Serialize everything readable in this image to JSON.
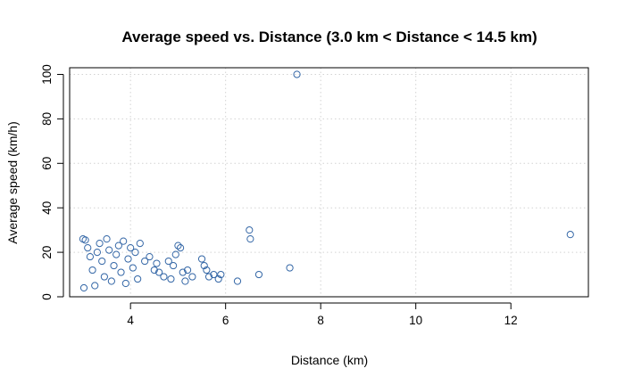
{
  "chart_data": {
    "type": "scatter",
    "title": "Average speed vs. Distance (3.0 km < Distance < 14.5 km)",
    "xlabel": "Distance (km)",
    "ylabel": "Average speed (km/h)",
    "xlim": [
      2.72,
      13.63
    ],
    "ylim": [
      0,
      103
    ],
    "xticks": [
      4,
      6,
      8,
      10,
      12
    ],
    "yticks": [
      0,
      20,
      40,
      60,
      80,
      100
    ],
    "grid": true,
    "legend": "none",
    "point_style": "open-circle",
    "color": "#3366a6",
    "series": [
      {
        "points": [
          [
            3.0,
            26
          ],
          [
            3.05,
            25.5
          ],
          [
            3.02,
            4
          ],
          [
            3.1,
            22
          ],
          [
            3.15,
            18
          ],
          [
            3.2,
            12
          ],
          [
            3.25,
            5
          ],
          [
            3.3,
            20
          ],
          [
            3.35,
            24
          ],
          [
            3.4,
            16
          ],
          [
            3.45,
            9
          ],
          [
            3.5,
            26
          ],
          [
            3.55,
            21
          ],
          [
            3.6,
            7
          ],
          [
            3.65,
            14
          ],
          [
            3.7,
            19
          ],
          [
            3.75,
            23
          ],
          [
            3.8,
            11
          ],
          [
            3.85,
            25
          ],
          [
            3.9,
            6
          ],
          [
            3.95,
            17
          ],
          [
            4.0,
            22
          ],
          [
            4.05,
            13
          ],
          [
            4.1,
            20
          ],
          [
            4.15,
            8
          ],
          [
            4.2,
            24
          ],
          [
            4.3,
            16
          ],
          [
            4.4,
            18
          ],
          [
            4.5,
            12
          ],
          [
            4.55,
            15
          ],
          [
            4.6,
            11
          ],
          [
            4.7,
            9
          ],
          [
            4.8,
            16
          ],
          [
            4.85,
            8
          ],
          [
            4.9,
            14
          ],
          [
            4.95,
            19
          ],
          [
            5.0,
            23
          ],
          [
            5.05,
            22
          ],
          [
            5.1,
            11
          ],
          [
            5.15,
            7
          ],
          [
            5.2,
            12
          ],
          [
            5.3,
            9
          ],
          [
            5.5,
            17
          ],
          [
            5.55,
            14
          ],
          [
            5.6,
            12
          ],
          [
            5.65,
            9
          ],
          [
            5.75,
            10
          ],
          [
            5.85,
            8
          ],
          [
            5.9,
            10
          ],
          [
            6.25,
            7
          ],
          [
            6.5,
            30
          ],
          [
            6.52,
            26
          ],
          [
            6.7,
            10
          ],
          [
            7.35,
            13
          ],
          [
            7.5,
            100
          ],
          [
            13.25,
            28
          ]
        ]
      }
    ]
  }
}
